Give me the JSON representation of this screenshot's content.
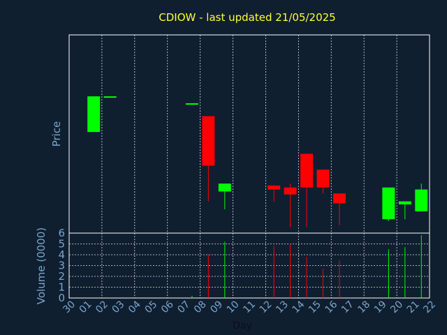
{
  "chart_data": {
    "type": "candlestick",
    "title": "CDIOW - last updated 21/05/2025",
    "xlabel": "Day",
    "price_label": "Price",
    "volume_label": "Volume (0000)",
    "x_ticks": [
      "30",
      "01",
      "02",
      "03",
      "04",
      "05",
      "06",
      "07",
      "08",
      "09",
      "10",
      "11",
      "12",
      "13",
      "14",
      "15",
      "16",
      "17",
      "18",
      "19",
      "20",
      "21",
      "22"
    ],
    "volume_ticks": [
      "0",
      "1",
      "2",
      "3",
      "4",
      "5",
      "6"
    ],
    "volume_range": [
      0,
      6
    ],
    "price_range": [
      0,
      100
    ],
    "grid": true,
    "colors": {
      "up": "#00ff00",
      "down": "#ff0000",
      "background": "#0f1f30",
      "frame": "#ffffff",
      "title": "#ffff33",
      "text": "#7aa6cc"
    },
    "candles": [
      {
        "day": "01",
        "open": 51,
        "high": 69,
        "low": 51,
        "close": 69,
        "volume": 0
      },
      {
        "day": "02",
        "open": 68.5,
        "high": 69,
        "low": 68.5,
        "close": 69,
        "volume": 0.05
      },
      {
        "day": "07",
        "open": 65.5,
        "high": 65.5,
        "low": 65.5,
        "close": 65.5,
        "volume": 0.2
      },
      {
        "day": "08",
        "open": 59,
        "high": 59,
        "low": 16,
        "close": 34,
        "volume": 4
      },
      {
        "day": "09",
        "open": 21,
        "high": 25,
        "low": 12,
        "close": 25,
        "volume": 5.2
      },
      {
        "day": "12",
        "open": 24,
        "high": 24,
        "low": 16,
        "close": 22,
        "volume": 4.8
      },
      {
        "day": "13",
        "open": 23,
        "high": 25,
        "low": 3,
        "close": 19.5,
        "volume": 5
      },
      {
        "day": "14",
        "open": 40,
        "high": 40,
        "low": 3,
        "close": 23,
        "volume": 3.8
      },
      {
        "day": "15",
        "open": 32,
        "high": 32,
        "low": 20,
        "close": 23,
        "volume": 2.7
      },
      {
        "day": "16",
        "open": 20,
        "high": 20,
        "low": 4,
        "close": 15,
        "volume": 3.5
      },
      {
        "day": "19",
        "open": 7,
        "high": 23,
        "low": 6,
        "close": 23,
        "volume": 4.5
      },
      {
        "day": "20",
        "open": 14.5,
        "high": 16,
        "low": 7,
        "close": 16,
        "volume": 4.7
      },
      {
        "day": "21",
        "open": 11,
        "high": 25,
        "low": 11,
        "close": 22,
        "volume": 5.8
      }
    ]
  }
}
